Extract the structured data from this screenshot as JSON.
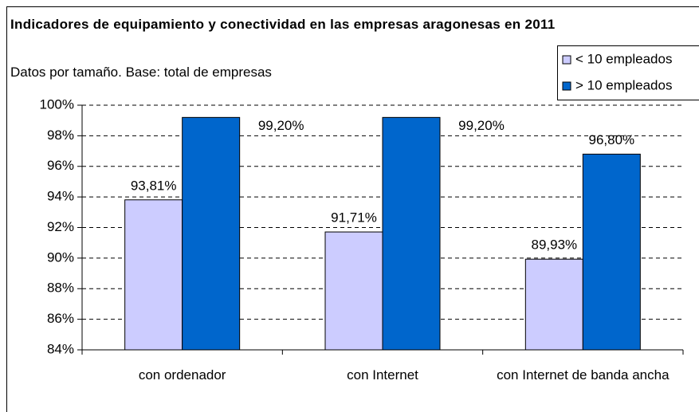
{
  "chart_data": {
    "type": "bar",
    "title": "Indicadores de equipamiento y conectividad en las empresas aragonesas en 2011",
    "subtitle": "Datos por tamaño. Base: total de empresas",
    "categories": [
      "con ordenador",
      "con Internet",
      "con Internet de banda ancha"
    ],
    "series": [
      {
        "name": "< 10 empleados",
        "color": "#ccccff",
        "values": [
          93.81,
          91.71,
          89.93
        ],
        "value_labels": [
          "93,81%",
          "91,71%",
          "89,93%"
        ]
      },
      {
        "name": "> 10 empleados",
        "color": "#0066cc",
        "values": [
          99.2,
          99.2,
          96.8
        ],
        "value_labels": [
          "99,20%",
          "99,20%",
          "96,80%"
        ]
      }
    ],
    "ylim": [
      84,
      100
    ],
    "yticks": [
      {
        "value": 84,
        "label": "84%"
      },
      {
        "value": 86,
        "label": "86%"
      },
      {
        "value": 88,
        "label": "88%"
      },
      {
        "value": 90,
        "label": "90%"
      },
      {
        "value": 92,
        "label": "92%"
      },
      {
        "value": 94,
        "label": "94%"
      },
      {
        "value": 96,
        "label": "96%"
      },
      {
        "value": 98,
        "label": "98%"
      },
      {
        "value": 100,
        "label": "100%"
      }
    ],
    "grid": true,
    "legend": "top-right"
  }
}
